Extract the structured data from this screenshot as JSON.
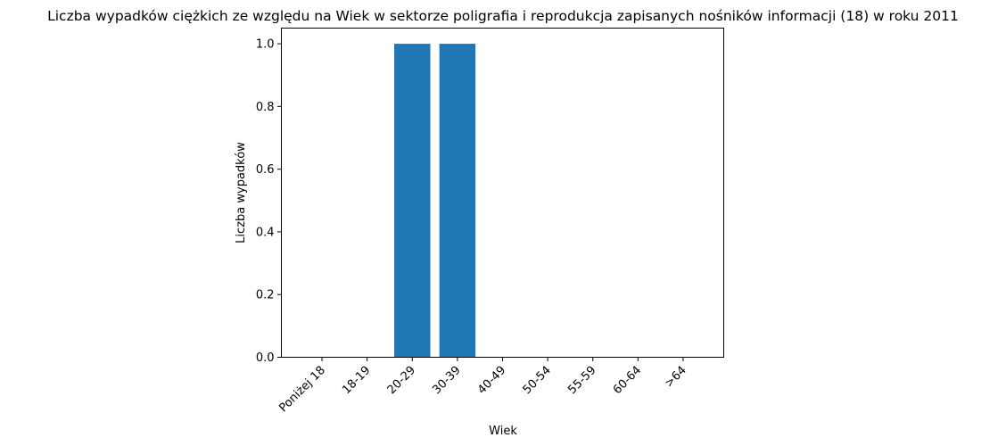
{
  "chart_data": {
    "type": "bar",
    "title": "Liczba wypadków ciężkich ze względu na Wiek w sektorze poligrafia i reprodukcja zapisanych nośników informacji  (18) w roku 2011",
    "xlabel": "Wiek",
    "ylabel": "Liczba wypadków",
    "categories": [
      "Poniżej 18",
      "18-19",
      "20-29",
      "30-39",
      "40-49",
      "50-54",
      "55-59",
      "60-64",
      ">64"
    ],
    "values": [
      0,
      0,
      1,
      1,
      0,
      0,
      0,
      0,
      0
    ],
    "ylim": [
      0,
      1.05
    ],
    "yticks": [
      "0.0",
      "0.2",
      "0.4",
      "0.6",
      "0.8",
      "1.0"
    ],
    "bar_color": "#1f77b4",
    "grid": false,
    "legend": "none"
  }
}
